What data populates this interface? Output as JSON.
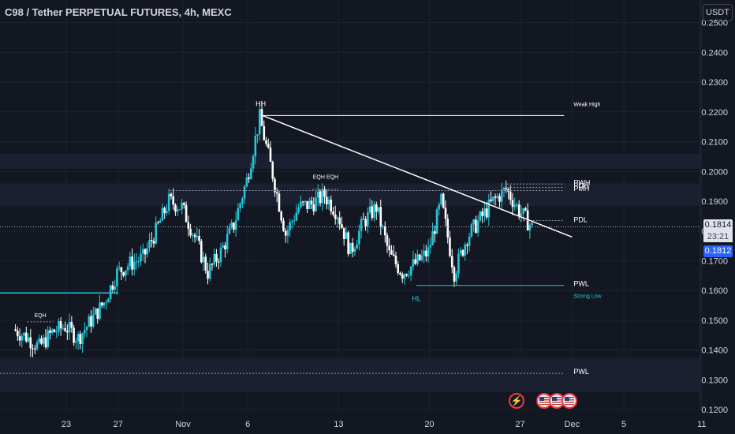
{
  "title": "C98 / Tether PERPETUAL FUTURES, 4h, MEXC",
  "currency": "USDT",
  "price_tags": {
    "last": "0.1814",
    "countdown": "23:21",
    "blue": "0.1812"
  },
  "colors": {
    "background": "#131722",
    "up": "#26c6da",
    "down": "#ffffff",
    "grid": "#1e222d",
    "text": "#d1d4dc",
    "accent": "#2962ff",
    "level": "#26c6da"
  },
  "events": [
    {
      "icon": "lightning-icon"
    },
    {
      "icon": "us-flag-icon"
    },
    {
      "icon": "us-flag-icon"
    },
    {
      "icon": "us-flag-icon"
    }
  ],
  "chart_data": {
    "type": "candlestick",
    "title": "C98 / Tether PERPETUAL FUTURES, 4h, MEXC",
    "ylabel": "USDT",
    "ylim": [
      0.115,
      0.256
    ],
    "y_ticks": [
      "0.2500",
      "0.2400",
      "0.2300",
      "0.2200",
      "0.2100",
      "0.2000",
      "0.1900",
      "0.1800",
      "0.1700",
      "0.1600",
      "0.1500",
      "0.1400",
      "0.1300",
      "0.1200"
    ],
    "x_ticks": [
      "23",
      "27",
      "Nov",
      "6",
      "13",
      "20",
      "27",
      "Dec",
      "5",
      "11"
    ],
    "grid": true,
    "price_path": [
      [
        "Oct 19",
        0.147
      ],
      [
        "Oct 20",
        0.1445
      ],
      [
        "Oct 21",
        0.141
      ],
      [
        "Oct 22",
        0.146
      ],
      [
        "Oct 23",
        0.148
      ],
      [
        "Oct 24",
        0.144
      ],
      [
        "Oct 25",
        0.15
      ],
      [
        "Oct 26",
        0.156
      ],
      [
        "Oct 27",
        0.166
      ],
      [
        "Oct 28",
        0.169
      ],
      [
        "Oct 29",
        0.171
      ],
      [
        "Oct 30",
        0.18
      ],
      [
        "Oct 31",
        0.19
      ],
      [
        "Nov 1",
        0.188
      ],
      [
        "Nov 2",
        0.178
      ],
      [
        "Nov 3",
        0.166
      ],
      [
        "Nov 4",
        0.173
      ],
      [
        "Nov 5",
        0.182
      ],
      [
        "Nov 6",
        0.197
      ],
      [
        "Nov 7",
        0.218
      ],
      [
        "Nov 8",
        0.199
      ],
      [
        "Nov 9",
        0.179
      ],
      [
        "Nov 10",
        0.188
      ],
      [
        "Nov 11",
        0.189
      ],
      [
        "Nov 12",
        0.192
      ],
      [
        "Nov 13",
        0.186
      ],
      [
        "Nov 14",
        0.173
      ],
      [
        "Nov 15",
        0.183
      ],
      [
        "Nov 16",
        0.188
      ],
      [
        "Nov 17",
        0.172
      ],
      [
        "Nov 18",
        0.166
      ],
      [
        "Nov 19",
        0.169
      ],
      [
        "Nov 20",
        0.173
      ],
      [
        "Nov 21",
        0.19
      ],
      [
        "Nov 22",
        0.166
      ],
      [
        "Nov 23",
        0.178
      ],
      [
        "Nov 24",
        0.184
      ],
      [
        "Nov 25",
        0.19
      ],
      [
        "Nov 26",
        0.194
      ],
      [
        "Nov 27",
        0.187
      ],
      [
        "Nov 28",
        0.1812
      ]
    ],
    "last_price": 0.1814,
    "annotations": [
      {
        "label": "HH",
        "x": "Nov 7",
        "y": 0.222
      },
      {
        "label": "Weak High",
        "x": "Dec 1",
        "y": 0.222
      },
      {
        "label": "EQH EQH",
        "x": "Nov 12",
        "y": 0.1975
      },
      {
        "label": "EQH",
        "x": "Oct 21",
        "y": 0.151
      },
      {
        "label": "HL",
        "x": "Nov 19",
        "y": 0.1565
      },
      {
        "label": "Strong Low",
        "x": "Dec 1",
        "y": 0.1575
      },
      {
        "label": "PWH",
        "x": "Dec 1",
        "y": 0.1955
      },
      {
        "label": "PDH",
        "x": "Dec 1",
        "y": 0.1945
      },
      {
        "label": "PMH",
        "x": "Dec 1",
        "y": 0.1935
      },
      {
        "label": "PDL",
        "x": "Dec 1",
        "y": 0.183
      },
      {
        "label": "PWL",
        "x": "Dec 1",
        "y": 0.1615
      },
      {
        "label": "PWL",
        "x": "Dec 1",
        "y": 0.132
      }
    ],
    "levels": [
      {
        "label": "Weak High",
        "price": 0.2188,
        "from": "Nov 7",
        "style": "solid"
      },
      {
        "label": "PWL",
        "price": 0.1617,
        "from": "Nov 19",
        "style": "solid"
      },
      {
        "label": "PWH",
        "price": 0.1958,
        "from": "Nov 26",
        "style": "dotted"
      },
      {
        "label": "PDH",
        "price": 0.1946,
        "from": "Nov 26",
        "style": "dotted"
      },
      {
        "label": "PMH",
        "price": 0.1936,
        "from": "Oct 31",
        "style": "dotted"
      },
      {
        "label": "PDL",
        "price": 0.1835,
        "from": "Nov 27",
        "style": "dotted"
      },
      {
        "label": "PWL",
        "price": 0.1322,
        "from": "Oct 19",
        "style": "dotted"
      }
    ],
    "trendline": {
      "from": [
        "Nov 7",
        0.219
      ],
      "to": [
        "Dec 1",
        0.178
      ]
    },
    "zones": [
      {
        "from_price": 0.201,
        "to_price": 0.206
      },
      {
        "from_price": 0.1885,
        "to_price": 0.196
      },
      {
        "from_price": 0.126,
        "to_price": 0.1375
      }
    ]
  }
}
